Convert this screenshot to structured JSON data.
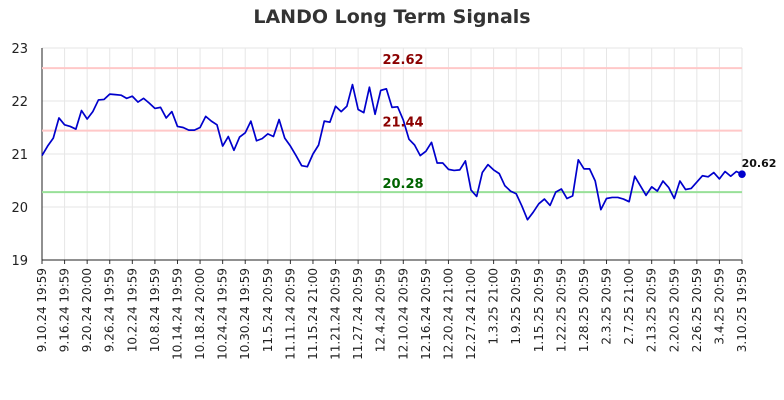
{
  "chart_data": {
    "type": "line",
    "title": "LANDO Long Term Signals",
    "xlabel": "",
    "ylabel": "",
    "ylim": [
      19,
      23
    ],
    "yticks": [
      "19",
      "20",
      "21",
      "22",
      "23"
    ],
    "grid": true,
    "colors": {
      "line": "#0000cc",
      "resistance_line": "#ffc8c8",
      "support_line": "#98e098",
      "resistance_label": "#8b0000",
      "support_label": "#006400",
      "grid": "#e6e6e6"
    },
    "xtick_labels": [
      "9.10.24 19:59",
      "9.16.24 19:59",
      "9.20.24 20:00",
      "9.26.24 19:59",
      "10.2.24 19:59",
      "10.8.24 19:59",
      "10.14.24 19:59",
      "10.18.24 20:00",
      "10.24.24 19:59",
      "10.30.24 19:59",
      "11.5.24 20:59",
      "11.11.24 20:59",
      "11.15.24 21:00",
      "11.21.24 20:59",
      "11.27.24 20:59",
      "12.4.24 20:59",
      "12.10.24 20:59",
      "12.16.24 20:59",
      "12.20.24 21:00",
      "12.27.24 21:00",
      "1.3.25 21:00",
      "1.9.25 20:59",
      "1.15.25 20:59",
      "1.22.25 20:59",
      "1.28.25 20:59",
      "2.3.25 20:59",
      "2.7.25 21:00",
      "2.13.25 20:59",
      "2.20.25 20:59",
      "2.26.25 20:59",
      "3.4.25 20:59",
      "3.10.25 19:59"
    ],
    "series": [
      {
        "values": [
          20.97,
          21.15,
          21.3,
          21.68,
          21.55,
          21.52,
          21.47,
          21.82,
          21.66,
          21.8,
          22.02,
          22.03,
          22.13,
          22.12,
          22.11,
          22.05,
          22.09,
          21.98,
          22.05,
          21.96,
          21.86,
          21.88,
          21.68,
          21.8,
          21.52,
          21.5,
          21.45,
          21.45,
          21.5,
          21.71,
          21.62,
          21.55,
          21.15,
          21.33,
          21.07,
          21.32,
          21.4,
          21.62,
          21.25,
          21.29,
          21.38,
          21.33,
          21.65,
          21.3,
          21.15,
          20.97,
          20.78,
          20.76,
          21.0,
          21.17,
          21.62,
          21.6,
          21.9,
          21.8,
          21.9,
          22.31,
          21.84,
          21.78,
          22.26,
          21.75,
          22.2,
          22.23,
          21.88,
          21.89,
          21.64,
          21.28,
          21.17,
          20.97,
          21.05,
          21.22,
          20.83,
          20.83,
          20.71,
          20.69,
          20.7,
          20.87,
          20.32,
          20.2,
          20.65,
          20.8,
          20.7,
          20.63,
          20.4,
          20.3,
          20.25,
          20.02,
          19.76,
          19.9,
          20.06,
          20.15,
          20.03,
          20.28,
          20.34,
          20.16,
          20.21,
          20.89,
          20.72,
          20.72,
          20.49,
          19.95,
          20.16,
          20.18,
          20.18,
          20.15,
          20.1,
          20.58,
          20.4,
          20.22,
          20.38,
          20.3,
          20.49,
          20.37,
          20.16,
          20.49,
          20.33,
          20.35,
          20.47,
          20.59,
          20.57,
          20.65,
          20.53,
          20.67,
          20.58,
          20.67,
          20.62
        ]
      }
    ],
    "reference_lines": [
      {
        "kind": "resistance",
        "value": 22.62,
        "label": "22.62"
      },
      {
        "kind": "resistance",
        "value": 21.44,
        "label": "21.44"
      },
      {
        "kind": "support",
        "value": 20.28,
        "label": "20.28"
      }
    ],
    "last_value_label": "20.62"
  }
}
